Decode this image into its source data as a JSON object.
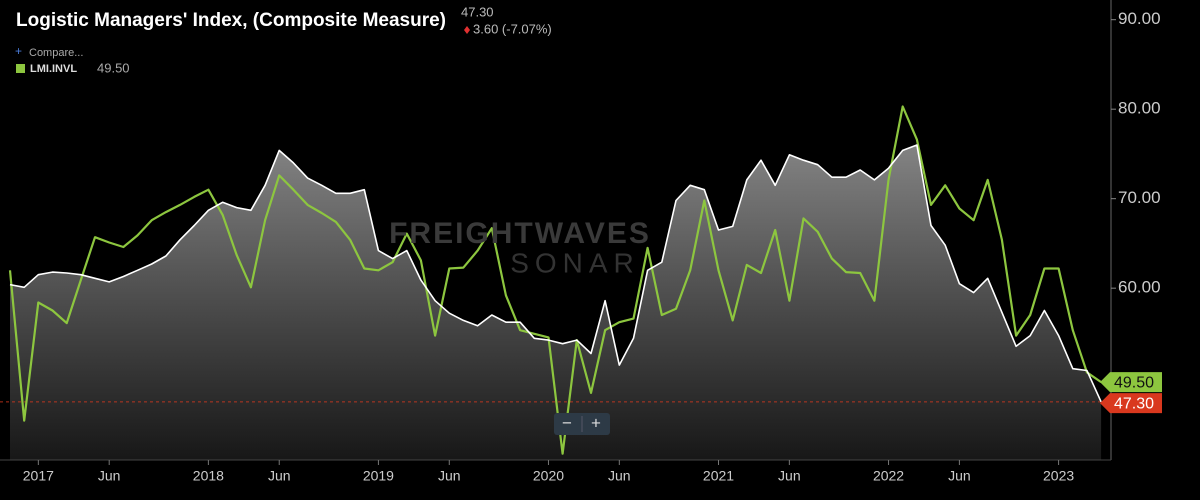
{
  "chart_data": {
    "type": "line",
    "header_value": "47.30",
    "change": "3.60 (-7.07%)",
    "compare": "Compare...",
    "watermark": [
      "FREIGHTWAVES",
      "SONAR"
    ],
    "categories": [
      null,
      null,
      "2017",
      null,
      null,
      null,
      null,
      "Jun",
      null,
      null,
      null,
      null,
      null,
      null,
      "2018",
      null,
      null,
      null,
      null,
      "Jun",
      null,
      null,
      null,
      null,
      null,
      null,
      "2019",
      null,
      null,
      null,
      null,
      "Jun",
      null,
      null,
      null,
      null,
      null,
      null,
      "2020",
      null,
      null,
      null,
      null,
      "Jun",
      null,
      null,
      null,
      null,
      null,
      null,
      "2021",
      null,
      null,
      null,
      null,
      "Jun",
      null,
      null,
      null,
      null,
      null,
      null,
      "2022",
      null,
      null,
      null,
      null,
      "Jun",
      null,
      null,
      null,
      null,
      null,
      null,
      "2023",
      null,
      null,
      null
    ],
    "series": [
      {
        "name": "Logistic Managers' Index, (Composite Measure)",
        "color": "#ffffff",
        "area": true,
        "badge_color": "#d9381e",
        "values": [
          60.4,
          60.1,
          61.5,
          61.8,
          61.7,
          61.5,
          61.1,
          60.7,
          61.3,
          62.0,
          62.7,
          63.6,
          65.4,
          67.0,
          68.7,
          69.6,
          69.0,
          68.7,
          71.5,
          75.4,
          74.0,
          72.3,
          71.5,
          70.6,
          70.6,
          71.0,
          64.2,
          63.3,
          64.2,
          60.9,
          58.6,
          57.2,
          56.4,
          55.8,
          57.0,
          56.2,
          56.2,
          54.4,
          54.2,
          53.8,
          54.2,
          52.7,
          58.6,
          51.4,
          54.4,
          62.0,
          62.9,
          69.8,
          71.5,
          71.0,
          66.5,
          66.9,
          72.1,
          74.3,
          71.5,
          74.9,
          74.3,
          73.8,
          72.4,
          72.4,
          73.2,
          72.1,
          73.4,
          75.4,
          76.0,
          67.0,
          64.8,
          60.5,
          59.5,
          61.1,
          57.3,
          53.5,
          54.7,
          57.5,
          54.7,
          51.0,
          50.8,
          47.3
        ],
        "value_labels": [
          null,
          null,
          null,
          null,
          null,
          null,
          null,
          null,
          null,
          null,
          null,
          null,
          null,
          null,
          null,
          null,
          null,
          null,
          null,
          null,
          null,
          null,
          null,
          null,
          null,
          null,
          null,
          null,
          null,
          null,
          null,
          null,
          null,
          null,
          null,
          null,
          null,
          null,
          null,
          null,
          null,
          null,
          null,
          null,
          null,
          null,
          null,
          null,
          null,
          null,
          null,
          null,
          null,
          null,
          null,
          null,
          null,
          null,
          null,
          null,
          null,
          null,
          null,
          null,
          null,
          null,
          null,
          null,
          null,
          null,
          null,
          null,
          null,
          null,
          null,
          null,
          null,
          "47.30"
        ]
      },
      {
        "name": "LMI.INVL",
        "color": "#8dc63f",
        "area": false,
        "badge_color": "#8dc63f",
        "values": [
          62.0,
          45.2,
          58.4,
          57.5,
          56.1,
          60.9,
          65.7,
          65.1,
          64.6,
          65.9,
          67.6,
          68.5,
          69.3,
          70.2,
          71.0,
          68.2,
          63.7,
          60.1,
          67.6,
          72.6,
          71.0,
          69.3,
          68.4,
          67.4,
          65.4,
          62.2,
          62.0,
          62.9,
          66.1,
          63.1,
          54.7,
          62.2,
          62.3,
          64.2,
          66.7,
          59.2,
          55.3,
          54.9,
          54.5,
          41.5,
          54.2,
          48.3,
          55.3,
          56.2,
          56.6,
          64.5,
          57.0,
          57.7,
          62.0,
          69.8,
          62.0,
          56.4,
          62.6,
          61.7,
          66.5,
          58.6,
          67.8,
          66.3,
          63.3,
          61.8,
          61.7,
          58.6,
          72.1,
          80.3,
          76.6,
          69.3,
          71.5,
          68.9,
          67.6,
          72.1,
          65.4,
          54.7,
          57.0,
          62.2,
          62.2,
          55.3,
          50.6,
          49.5
        ],
        "value_labels": [
          null,
          null,
          null,
          null,
          null,
          null,
          null,
          null,
          null,
          null,
          null,
          null,
          null,
          null,
          null,
          null,
          null,
          null,
          null,
          null,
          null,
          null,
          null,
          null,
          null,
          null,
          null,
          null,
          null,
          null,
          null,
          null,
          null,
          null,
          null,
          null,
          null,
          null,
          null,
          null,
          null,
          null,
          null,
          null,
          null,
          null,
          null,
          null,
          null,
          null,
          null,
          null,
          null,
          null,
          null,
          null,
          null,
          null,
          null,
          null,
          null,
          null,
          null,
          null,
          null,
          null,
          null,
          null,
          null,
          null,
          null,
          null,
          null,
          null,
          null,
          null,
          null,
          "49.50"
        ]
      }
    ],
    "ylim": [
      40.8,
      92.2
    ],
    "yticks": [
      {
        "value": 60,
        "label": "60.00"
      },
      {
        "value": 70,
        "label": "70.00"
      },
      {
        "value": 80,
        "label": "80.00"
      },
      {
        "value": 90,
        "label": "90.00"
      }
    ],
    "last_line_color": "#d9381e"
  }
}
